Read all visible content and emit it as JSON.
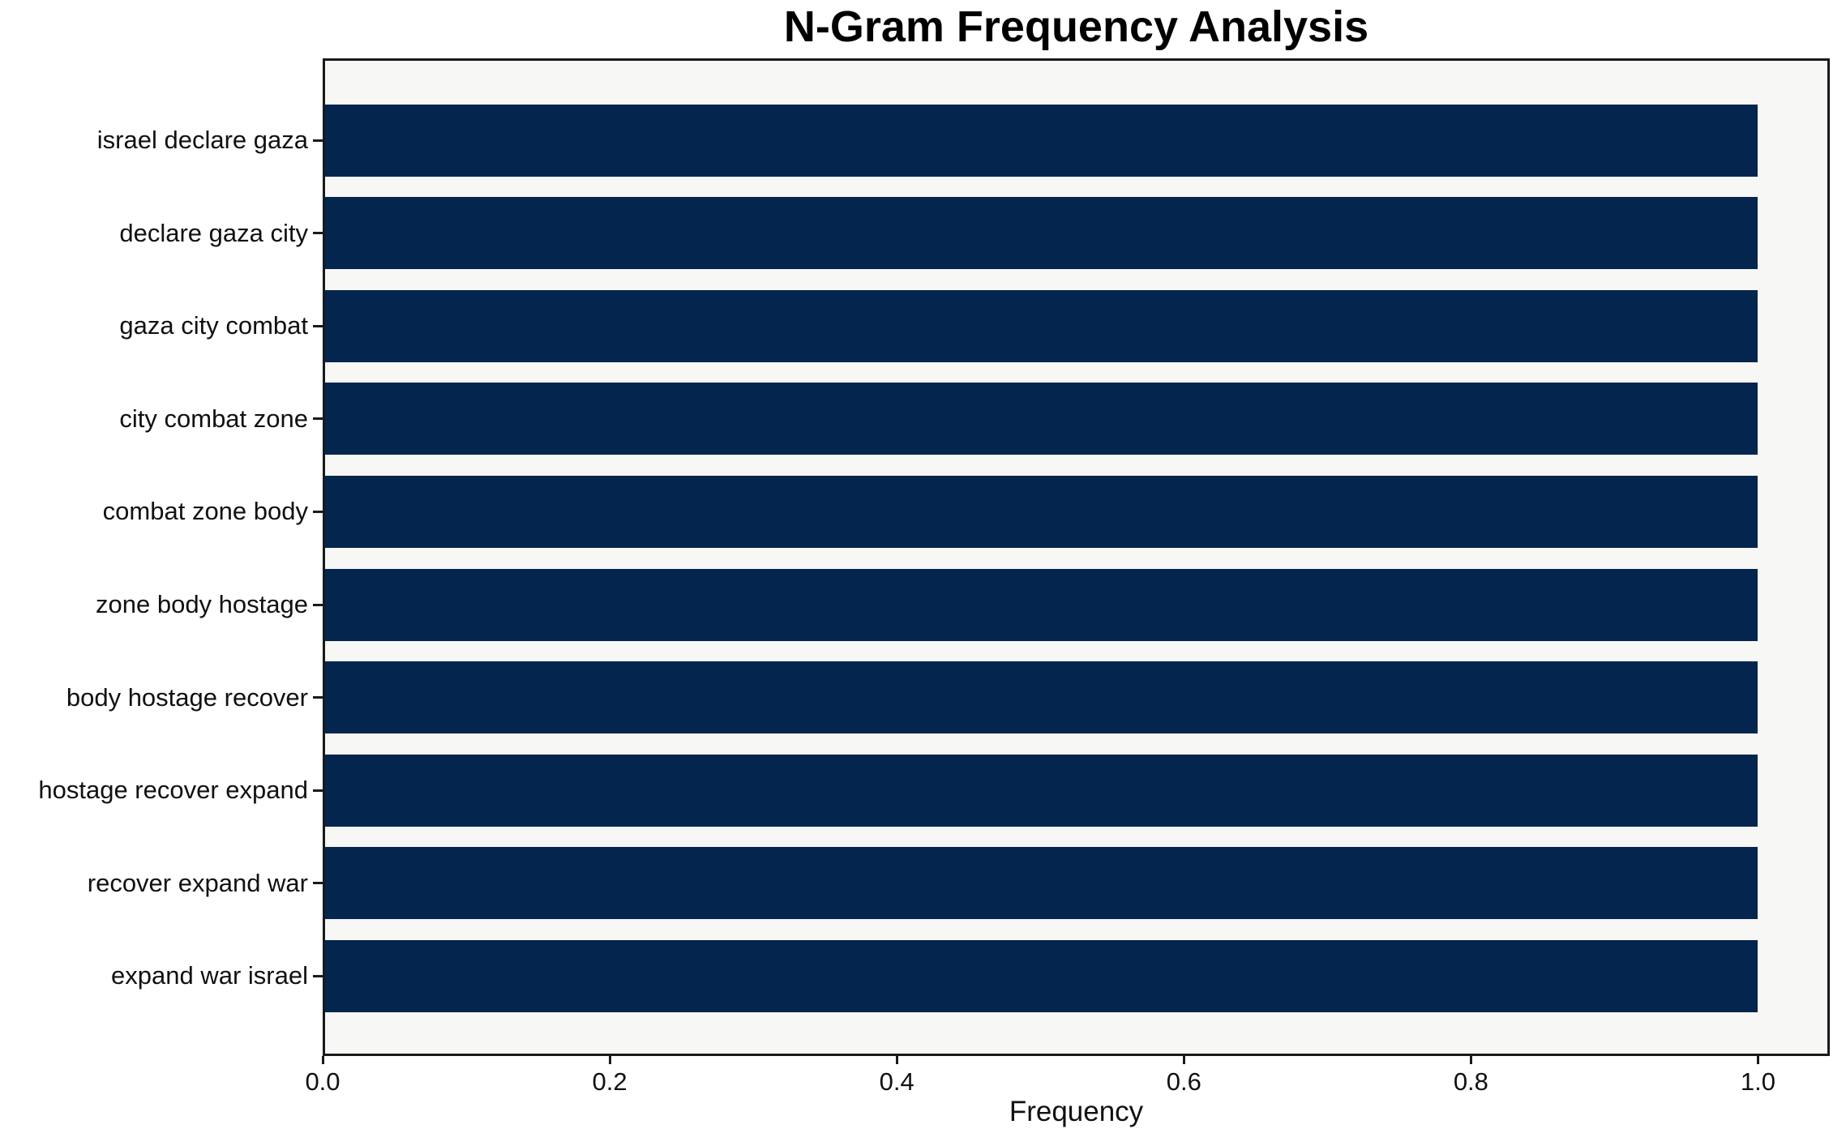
{
  "chart_data": {
    "type": "bar",
    "orientation": "horizontal",
    "title": "N-Gram Frequency Analysis",
    "xlabel": "Frequency",
    "ylabel": "",
    "categories": [
      "israel declare gaza",
      "declare gaza city",
      "gaza city combat",
      "city combat zone",
      "combat zone body",
      "zone body hostage",
      "body hostage recover",
      "hostage recover expand",
      "recover expand war",
      "expand war israel"
    ],
    "values": [
      1.0,
      1.0,
      1.0,
      1.0,
      1.0,
      1.0,
      1.0,
      1.0,
      1.0,
      1.0
    ],
    "x_ticks": [
      0.0,
      0.2,
      0.4,
      0.6,
      0.8,
      1.0
    ],
    "x_tick_labels": [
      "0.0",
      "0.2",
      "0.4",
      "0.6",
      "0.8",
      "1.0"
    ],
    "xlim": [
      0,
      1.05
    ],
    "grid": false,
    "legend": null,
    "colors": {
      "bar": "#03254e",
      "plot_background": "#f7f7f5",
      "figure_background": "#ffffff",
      "spine": "#1a1a1a",
      "text": "#111111"
    }
  }
}
